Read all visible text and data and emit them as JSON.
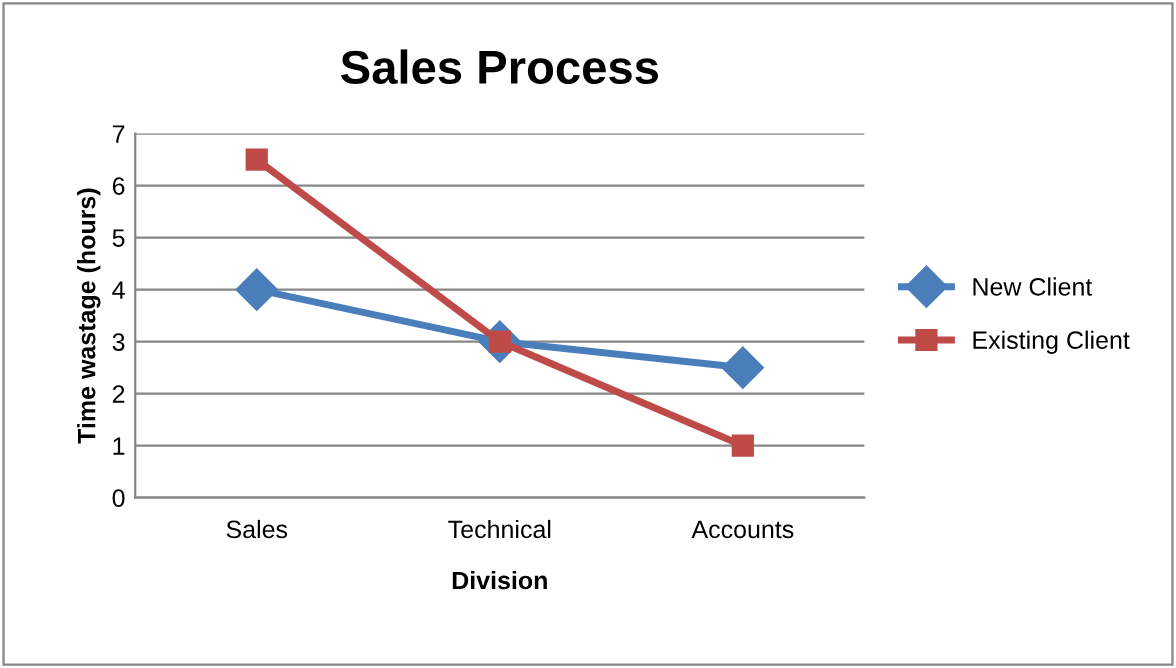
{
  "chart_data": {
    "type": "line",
    "title": "Sales Process",
    "xlabel": "Division",
    "ylabel": "Time wastage (hours)",
    "categories": [
      "Sales",
      "Technical",
      "Accounts"
    ],
    "series": [
      {
        "name": "New Client",
        "color": "#4a7ebb",
        "marker": "diamond",
        "values": [
          4,
          3,
          2.5
        ]
      },
      {
        "name": "Existing Client",
        "color": "#be4b48",
        "marker": "square",
        "values": [
          6.5,
          3,
          1
        ]
      }
    ],
    "ylim": [
      0,
      7
    ],
    "yticks": [
      0,
      1,
      2,
      3,
      4,
      5,
      6,
      7
    ],
    "grid": "y",
    "legend": "right",
    "line_style": "solid"
  }
}
